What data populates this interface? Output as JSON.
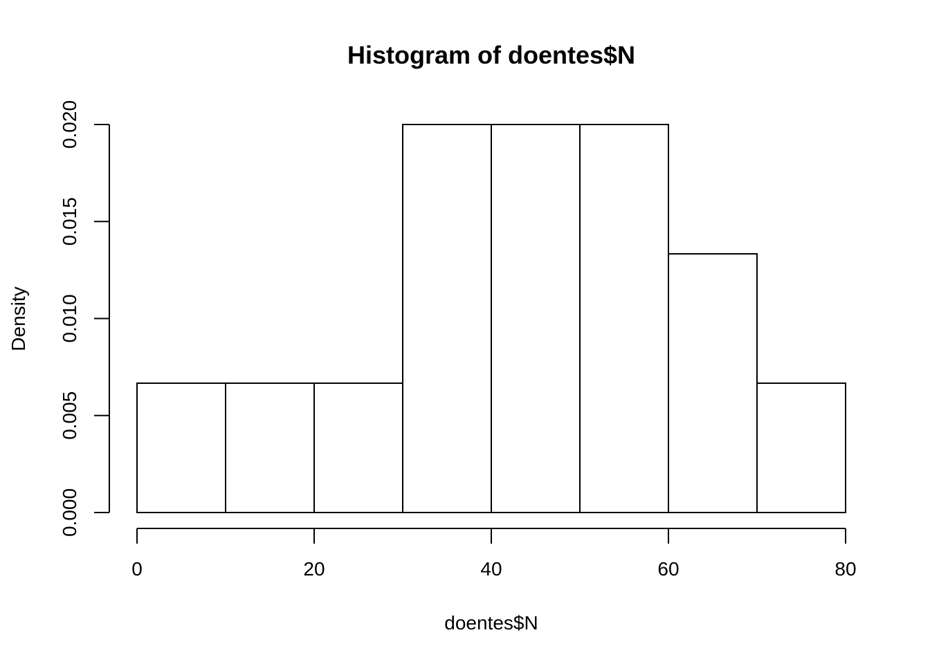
{
  "chart_data": {
    "type": "bar",
    "title": "Histogram of doentes$N",
    "xlabel": "doentes$N",
    "ylabel": "Density",
    "bins": [
      {
        "from": 0,
        "to": 10,
        "density": 0.006667
      },
      {
        "from": 10,
        "to": 20,
        "density": 0.006667
      },
      {
        "from": 20,
        "to": 30,
        "density": 0.006667
      },
      {
        "from": 30,
        "to": 40,
        "density": 0.02
      },
      {
        "from": 40,
        "to": 50,
        "density": 0.02
      },
      {
        "from": 50,
        "to": 60,
        "density": 0.02
      },
      {
        "from": 60,
        "to": 70,
        "density": 0.013333
      },
      {
        "from": 70,
        "to": 80,
        "density": 0.006667
      }
    ],
    "x_ticks": [
      {
        "value": 0,
        "label": "0"
      },
      {
        "value": 20,
        "label": "20"
      },
      {
        "value": 40,
        "label": "40"
      },
      {
        "value": 60,
        "label": "60"
      },
      {
        "value": 80,
        "label": "80"
      }
    ],
    "y_ticks": [
      {
        "value": 0,
        "label": "0.000"
      },
      {
        "value": 0.005,
        "label": "0.005"
      },
      {
        "value": 0.01,
        "label": "0.010"
      },
      {
        "value": 0.015,
        "label": "0.015"
      },
      {
        "value": 0.02,
        "label": "0.020"
      }
    ],
    "xlim": [
      0,
      80
    ],
    "ylim": [
      0,
      0.02
    ],
    "grid": false,
    "legend": "none"
  }
}
